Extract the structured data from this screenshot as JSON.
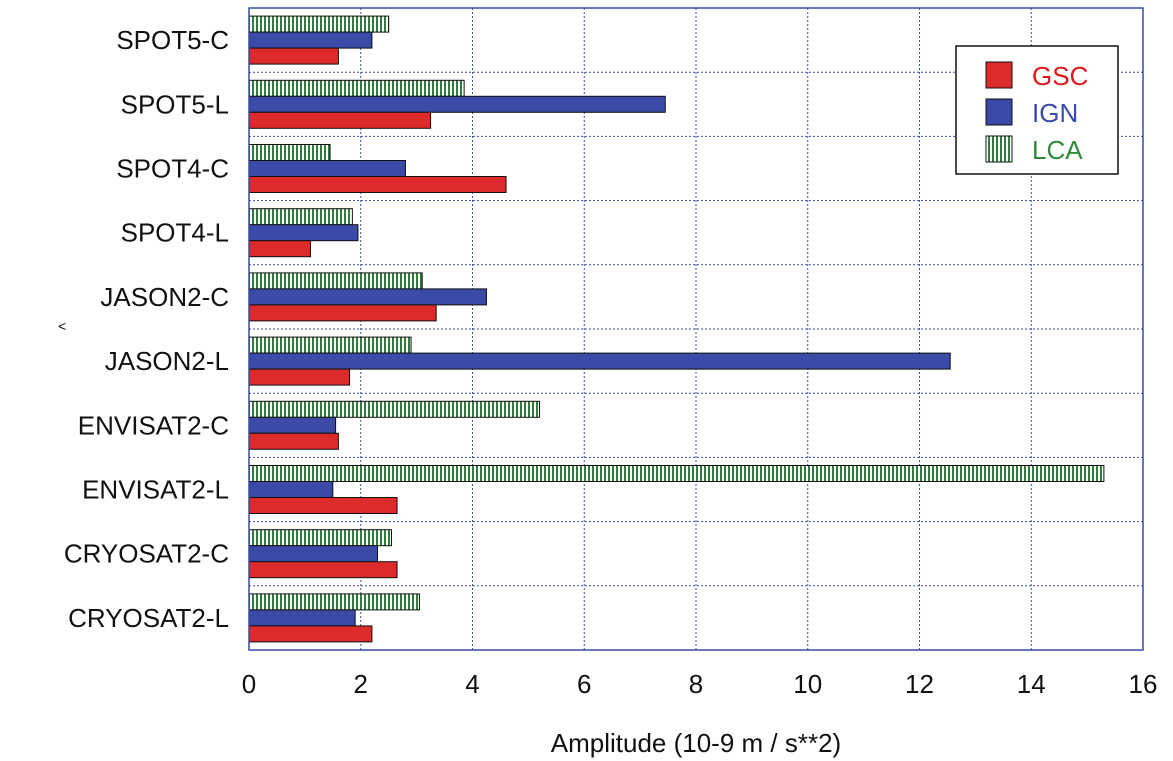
{
  "chart_data": {
    "type": "bar",
    "orientation": "horizontal",
    "title": "",
    "xlabel": "Amplitude (10-9 m / s**2)",
    "ylabel": "",
    "xlim": [
      0,
      16
    ],
    "xticks": [
      "0",
      "2",
      "4",
      "6",
      "8",
      "10",
      "12",
      "14",
      "16"
    ],
    "grid": true,
    "legend_position": "top-right",
    "categories": [
      "SPOT5-C",
      "SPOT5-L",
      "SPOT4-C",
      "SPOT4-L",
      "JASON2-C",
      "JASON2-L",
      "ENVISAT2-C",
      "ENVISAT2-L",
      "CRYOSAT2-C",
      "CRYOSAT2-L"
    ],
    "series": [
      {
        "name": "GSC",
        "color": "#dd2a2a",
        "label_color": "#e01818",
        "fill": "solid",
        "values": [
          1.6,
          3.25,
          4.6,
          1.1,
          3.35,
          1.8,
          1.6,
          2.65,
          2.65,
          2.2
        ]
      },
      {
        "name": "IGN",
        "color": "#3a4aa6",
        "label_color": "#3a4aa6",
        "fill": "solid",
        "values": [
          2.2,
          7.45,
          2.8,
          1.95,
          4.25,
          12.55,
          1.55,
          1.5,
          2.3,
          1.9
        ]
      },
      {
        "name": "LCA",
        "color": "#2e7d3a",
        "label_color": "#2e8b3a",
        "fill": "striped",
        "values": [
          2.5,
          3.85,
          1.45,
          1.85,
          3.1,
          2.9,
          5.2,
          15.3,
          2.55,
          3.05
        ]
      }
    ],
    "annotations": [
      "<"
    ]
  }
}
